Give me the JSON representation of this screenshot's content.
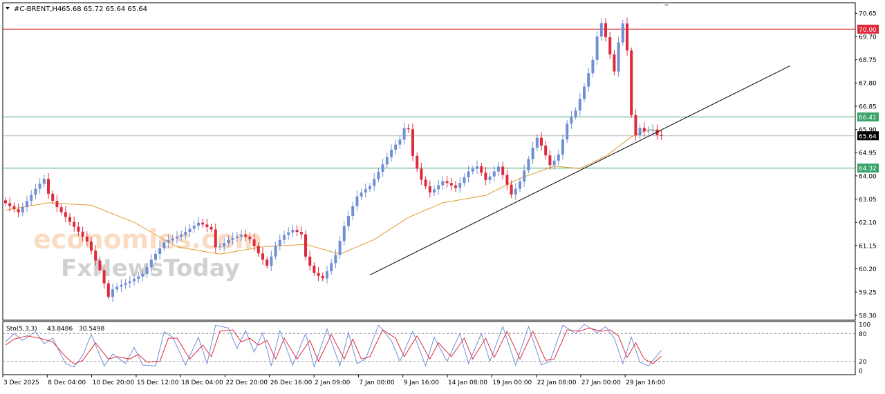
{
  "header": {
    "symbol_timeframe": "#C-BRENT,H4",
    "ohlc_readout": "65.68 65.72 65.64 65.64"
  },
  "watermark": {
    "brand_top": "economies.com",
    "brand_bottom": "FxNewsToday"
  },
  "colors": {
    "bull_candle": "#6f8fd6",
    "bear_candle": "#e0293a",
    "moving_average": "#e09a2c",
    "resistance_line": "#d41b1b",
    "support_line": "#3aa36a",
    "trend_line": "#000000",
    "stoch_main": "#6f8fd6",
    "stoch_signal": "#e0293a",
    "badge_red": "#e0293a",
    "badge_green": "#3aa36a",
    "badge_price": "#000000"
  },
  "chart_data": [
    {
      "type": "candlestick",
      "instrument": "#C-BRENT",
      "timeframe": "H4",
      "ylim": [
        58.1,
        71.08
      ],
      "y_ticks": [
        "70.65",
        "69.70",
        "68.75",
        "67.80",
        "66.85",
        "65.90",
        "64.95",
        "64.00",
        "63.05",
        "62.10",
        "61.15",
        "60.20",
        "59.25",
        "58.30"
      ],
      "x_ticks": [
        "3 Dec 2025",
        "8 Dec 04:00",
        "10 Dec 20:00",
        "15 Dec 12:00",
        "18 Dec 04:00",
        "22 Dec 20:00",
        "26 Dec 16:00",
        "2 Jan 09:00",
        "7 Jan 00:00",
        "9 Jan 16:00",
        "14 Jan 08:00",
        "19 Jan 00:00",
        "22 Jan 08:00",
        "27 Jan 00:00",
        "29 Jan 16:00"
      ],
      "price_path": [
        [
          0,
          63.0
        ],
        [
          4,
          62.5
        ],
        [
          8,
          63.5
        ],
        [
          10,
          63.9
        ],
        [
          11,
          63.2
        ],
        [
          13,
          62.7
        ],
        [
          16,
          62.1
        ],
        [
          18,
          61.7
        ],
        [
          20,
          61.3
        ],
        [
          23,
          60.1
        ],
        [
          25,
          59.0
        ],
        [
          26,
          59.4
        ],
        [
          30,
          59.7
        ],
        [
          33,
          60.0
        ],
        [
          35,
          60.6
        ],
        [
          38,
          61.3
        ],
        [
          42,
          61.6
        ],
        [
          46,
          62.1
        ],
        [
          49,
          61.8
        ],
        [
          50,
          61.0
        ],
        [
          53,
          61.4
        ],
        [
          56,
          61.6
        ],
        [
          58,
          61.4
        ],
        [
          60,
          60.8
        ],
        [
          62,
          60.3
        ],
        [
          64,
          61.2
        ],
        [
          66,
          61.6
        ],
        [
          68,
          61.8
        ],
        [
          70,
          61.6
        ],
        [
          71,
          60.6
        ],
        [
          73,
          60.0
        ],
        [
          75,
          59.8
        ],
        [
          78,
          60.8
        ],
        [
          80,
          62.0
        ],
        [
          83,
          63.2
        ],
        [
          86,
          63.6
        ],
        [
          89,
          64.5
        ],
        [
          91,
          65.1
        ],
        [
          93,
          65.5
        ],
        [
          94,
          66.0
        ],
        [
          95,
          65.9
        ],
        [
          96,
          64.7
        ],
        [
          98,
          63.8
        ],
        [
          100,
          63.3
        ],
        [
          103,
          63.8
        ],
        [
          106,
          63.5
        ],
        [
          109,
          64.2
        ],
        [
          111,
          64.4
        ],
        [
          113,
          63.8
        ],
        [
          116,
          64.4
        ],
        [
          119,
          63.2
        ],
        [
          121,
          63.8
        ],
        [
          124,
          65.2
        ],
        [
          125,
          65.6
        ],
        [
          128,
          64.4
        ],
        [
          130,
          64.9
        ],
        [
          132,
          66.2
        ],
        [
          134,
          66.7
        ],
        [
          136,
          67.7
        ],
        [
          138,
          68.8
        ],
        [
          139,
          69.8
        ],
        [
          140,
          70.3
        ],
        [
          141,
          69.6
        ],
        [
          142,
          68.9
        ],
        [
          143,
          68.2
        ],
        [
          144,
          69.6
        ],
        [
          145,
          70.3
        ],
        [
          146,
          69.0
        ],
        [
          147,
          66.2
        ],
        [
          148,
          65.6
        ],
        [
          149,
          66.0
        ],
        [
          150,
          65.8
        ],
        [
          152,
          65.9
        ],
        [
          153,
          65.64
        ]
      ],
      "moving_average_path": [
        [
          0,
          62.6
        ],
        [
          10,
          62.9
        ],
        [
          20,
          62.8
        ],
        [
          30,
          62.1
        ],
        [
          40,
          61.1
        ],
        [
          50,
          60.8
        ],
        [
          60,
          61.1
        ],
        [
          70,
          61.2
        ],
        [
          78,
          60.8
        ],
        [
          86,
          61.4
        ],
        [
          94,
          62.3
        ],
        [
          102,
          62.9
        ],
        [
          112,
          63.2
        ],
        [
          120,
          63.9
        ],
        [
          128,
          64.4
        ],
        [
          134,
          64.3
        ],
        [
          140,
          64.8
        ],
        [
          146,
          65.6
        ],
        [
          150,
          65.9
        ],
        [
          153,
          65.8
        ]
      ],
      "trend_line": {
        "from": [
          85,
          59.95
        ],
        "to": [
          183,
          68.5
        ]
      },
      "horizontal_levels": [
        {
          "value": 70.0,
          "label": "70.00",
          "kind": "resistance"
        },
        {
          "value": 66.41,
          "label": "66.41",
          "kind": "support"
        },
        {
          "value": 64.32,
          "label": "64.32",
          "kind": "support"
        }
      ],
      "current_price": {
        "value": 65.64,
        "label": "65.64"
      }
    },
    {
      "type": "line",
      "indicator": "Sto(5,3,3)",
      "main_value": "43.8486",
      "signal_value": "30.5498",
      "ylim": [
        0,
        100
      ],
      "y_ticks": [
        "100",
        "80",
        "20",
        "0"
      ],
      "levels": [
        80,
        20
      ],
      "main_path": [
        [
          0,
          62
        ],
        [
          2,
          80
        ],
        [
          4,
          65
        ],
        [
          7,
          84
        ],
        [
          9,
          58
        ],
        [
          11,
          70
        ],
        [
          14,
          15
        ],
        [
          16,
          8
        ],
        [
          18,
          32
        ],
        [
          20,
          78
        ],
        [
          23,
          10
        ],
        [
          25,
          36
        ],
        [
          28,
          15
        ],
        [
          30,
          50
        ],
        [
          32,
          12
        ],
        [
          35,
          10
        ],
        [
          37,
          84
        ],
        [
          39,
          72
        ],
        [
          42,
          12
        ],
        [
          45,
          72
        ],
        [
          47,
          15
        ],
        [
          49,
          98
        ],
        [
          52,
          92
        ],
        [
          54,
          48
        ],
        [
          56,
          86
        ],
        [
          58,
          40
        ],
        [
          60,
          82
        ],
        [
          62,
          10
        ],
        [
          64,
          86
        ],
        [
          67,
          12
        ],
        [
          70,
          80
        ],
        [
          72,
          8
        ],
        [
          75,
          90
        ],
        [
          78,
          10
        ],
        [
          80,
          82
        ],
        [
          82,
          15
        ],
        [
          84,
          25
        ],
        [
          87,
          98
        ],
        [
          90,
          65
        ],
        [
          92,
          20
        ],
        [
          95,
          85
        ],
        [
          98,
          10
        ],
        [
          100,
          72
        ],
        [
          103,
          20
        ],
        [
          106,
          80
        ],
        [
          108,
          15
        ],
        [
          111,
          80
        ],
        [
          113,
          20
        ],
        [
          116,
          95
        ],
        [
          119,
          12
        ],
        [
          122,
          95
        ],
        [
          125,
          12
        ],
        [
          127,
          20
        ],
        [
          130,
          98
        ],
        [
          133,
          80
        ],
        [
          135,
          100
        ],
        [
          138,
          82
        ],
        [
          140,
          95
        ],
        [
          142,
          70
        ],
        [
          144,
          15
        ],
        [
          146,
          72
        ],
        [
          148,
          18
        ],
        [
          150,
          10
        ],
        [
          153,
          44
        ]
      ],
      "signal_path": [
        [
          0,
          55
        ],
        [
          2,
          68
        ],
        [
          5,
          75
        ],
        [
          8,
          70
        ],
        [
          11,
          62
        ],
        [
          14,
          30
        ],
        [
          16,
          14
        ],
        [
          18,
          22
        ],
        [
          21,
          60
        ],
        [
          24,
          25
        ],
        [
          26,
          30
        ],
        [
          29,
          25
        ],
        [
          31,
          35
        ],
        [
          33,
          18
        ],
        [
          36,
          20
        ],
        [
          38,
          70
        ],
        [
          40,
          70
        ],
        [
          43,
          25
        ],
        [
          46,
          55
        ],
        [
          48,
          30
        ],
        [
          50,
          85
        ],
        [
          53,
          88
        ],
        [
          55,
          62
        ],
        [
          57,
          70
        ],
        [
          59,
          55
        ],
        [
          61,
          65
        ],
        [
          63,
          25
        ],
        [
          65,
          70
        ],
        [
          68,
          25
        ],
        [
          71,
          65
        ],
        [
          73,
          20
        ],
        [
          76,
          78
        ],
        [
          79,
          25
        ],
        [
          81,
          68
        ],
        [
          83,
          25
        ],
        [
          85,
          30
        ],
        [
          88,
          88
        ],
        [
          91,
          70
        ],
        [
          93,
          30
        ],
        [
          96,
          75
        ],
        [
          99,
          25
        ],
        [
          101,
          60
        ],
        [
          104,
          30
        ],
        [
          107,
          70
        ],
        [
          109,
          25
        ],
        [
          112,
          70
        ],
        [
          114,
          28
        ],
        [
          117,
          85
        ],
        [
          120,
          25
        ],
        [
          123,
          85
        ],
        [
          126,
          22
        ],
        [
          128,
          25
        ],
        [
          131,
          88
        ],
        [
          134,
          85
        ],
        [
          136,
          92
        ],
        [
          139,
          85
        ],
        [
          141,
          88
        ],
        [
          143,
          75
        ],
        [
          145,
          28
        ],
        [
          147,
          60
        ],
        [
          149,
          25
        ],
        [
          151,
          15
        ],
        [
          153,
          31
        ]
      ]
    }
  ]
}
